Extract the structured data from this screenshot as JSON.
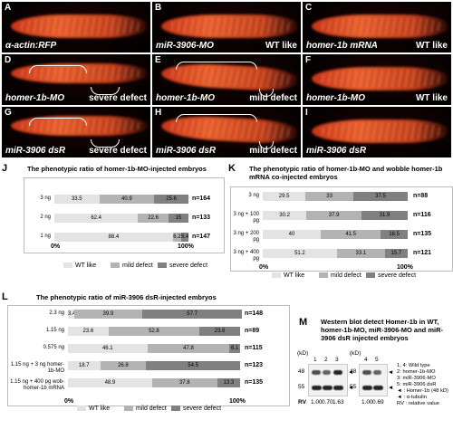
{
  "panels": [
    {
      "letter": "A",
      "bottom_left": "α-actin:RFP",
      "bottom_right": ""
    },
    {
      "letter": "B",
      "bottom_left": "miR-3906-MO",
      "bottom_right": "WT like"
    },
    {
      "letter": "C",
      "bottom_left": "homer-1b mRNA",
      "bottom_right": "WT like"
    },
    {
      "letter": "D",
      "bottom_left": "homer-1b-MO",
      "bottom_right": "severe defect"
    },
    {
      "letter": "E",
      "bottom_left": "homer-1b-MO",
      "bottom_right": "mild defect"
    },
    {
      "letter": "F",
      "bottom_left": "homer-1b-MO",
      "bottom_right": "WT like"
    },
    {
      "letter": "G",
      "bottom_left": "miR-3906 dsR",
      "bottom_right": "severe defect"
    },
    {
      "letter": "H",
      "bottom_left": "miR-3906 dsR",
      "bottom_right": "mild defect"
    },
    {
      "letter": "I",
      "bottom_left": "miR-3906 dsR",
      "bottom_right": ""
    }
  ],
  "colors": {
    "wt": "#e3e3e3",
    "mild": "#b3b3b3",
    "severe": "#808080"
  },
  "chart_data": [
    {
      "letter": "J",
      "type": "bar",
      "stacked": "horizontal-100%",
      "title": "The phenotypic ratio of homer-1b-MO-injected embryos",
      "categories": [
        "3 ng",
        "2 ng",
        "1 ng"
      ],
      "series": [
        {
          "name": "WT like",
          "values": [
            33.5,
            62.4,
            88.4
          ]
        },
        {
          "name": "mild defect",
          "values": [
            40.9,
            22.6,
            6.2
          ]
        },
        {
          "name": "severe defect",
          "values": [
            25.6,
            15,
            5.4
          ]
        }
      ],
      "n_labels": [
        "n=164",
        "n=133",
        "n=147"
      ],
      "axis_labels": [
        "0%",
        "100%"
      ]
    },
    {
      "letter": "K",
      "type": "bar",
      "stacked": "horizontal-100%",
      "title": "The phenotypic ratio of homer-1b-MO and wobble homer-1b mRNA co-injected embryos",
      "categories": [
        "3 ng",
        "3 ng + 100 pg",
        "3 ng + 200 pg",
        "3 ng + 400 pg"
      ],
      "series": [
        {
          "name": "WT like",
          "values": [
            29.5,
            30.2,
            40.0,
            51.2
          ]
        },
        {
          "name": "mild defect",
          "values": [
            33.0,
            37.9,
            41.5,
            33.1
          ]
        },
        {
          "name": "severe defect",
          "values": [
            37.5,
            31.9,
            18.5,
            15.7
          ]
        }
      ],
      "n_labels": [
        "n=88",
        "n=116",
        "n=135",
        "n=121"
      ],
      "axis_labels": [
        "0%",
        "100%"
      ]
    },
    {
      "letter": "L",
      "type": "bar",
      "stacked": "horizontal-100%",
      "title": "The phenotypic ratio of miR-3906 dsR-injected embryos",
      "categories": [
        "2.3 ng",
        "1.15 ng",
        "0.575 ng",
        "1.15 ng + 3 ng homer-1b-MO",
        "1.15 ng + 400 pg wob-homer-1b mRNA"
      ],
      "series": [
        {
          "name": "WT like",
          "values": [
            3.4,
            23.6,
            46.1,
            18.7,
            48.9
          ]
        },
        {
          "name": "mild defect",
          "values": [
            39.9,
            52.8,
            47.8,
            26.8,
            37.8
          ]
        },
        {
          "name": "severe defect",
          "values": [
            57.7,
            23.6,
            6.1,
            54.5,
            13.3
          ]
        }
      ],
      "n_labels": [
        "n=148",
        "n=89",
        "n=115",
        "n=123",
        "n=135"
      ],
      "axis_labels": [
        "0%",
        "100%"
      ]
    }
  ],
  "western": {
    "letter": "M",
    "title": "Western blot detect Homer-1b in WT, homer-1b-MO, miR-3906-MO and miR-3906 dsR injected embryos",
    "kd": "(kD)",
    "left_lanes": [
      "1",
      "2",
      "3"
    ],
    "right_lanes": [
      "4",
      "5"
    ],
    "markers": [
      "48",
      "55"
    ],
    "rv_label": "RV",
    "left_rv": [
      "1.00",
      "0.70",
      "1.63"
    ],
    "right_rv": [
      "1.00",
      "0.69"
    ],
    "homer_band": [
      1.0,
      0.7,
      1.63,
      1.0,
      0.69
    ],
    "key": [
      "1, 4: Wild type",
      "2: homer-1b-MO",
      "3: miR-3906-MO",
      "5: miR-3906 dsR",
      "◄ : Homer-1b (48 kD)",
      "◄ : α-tubulin",
      "RV : relative value"
    ]
  }
}
